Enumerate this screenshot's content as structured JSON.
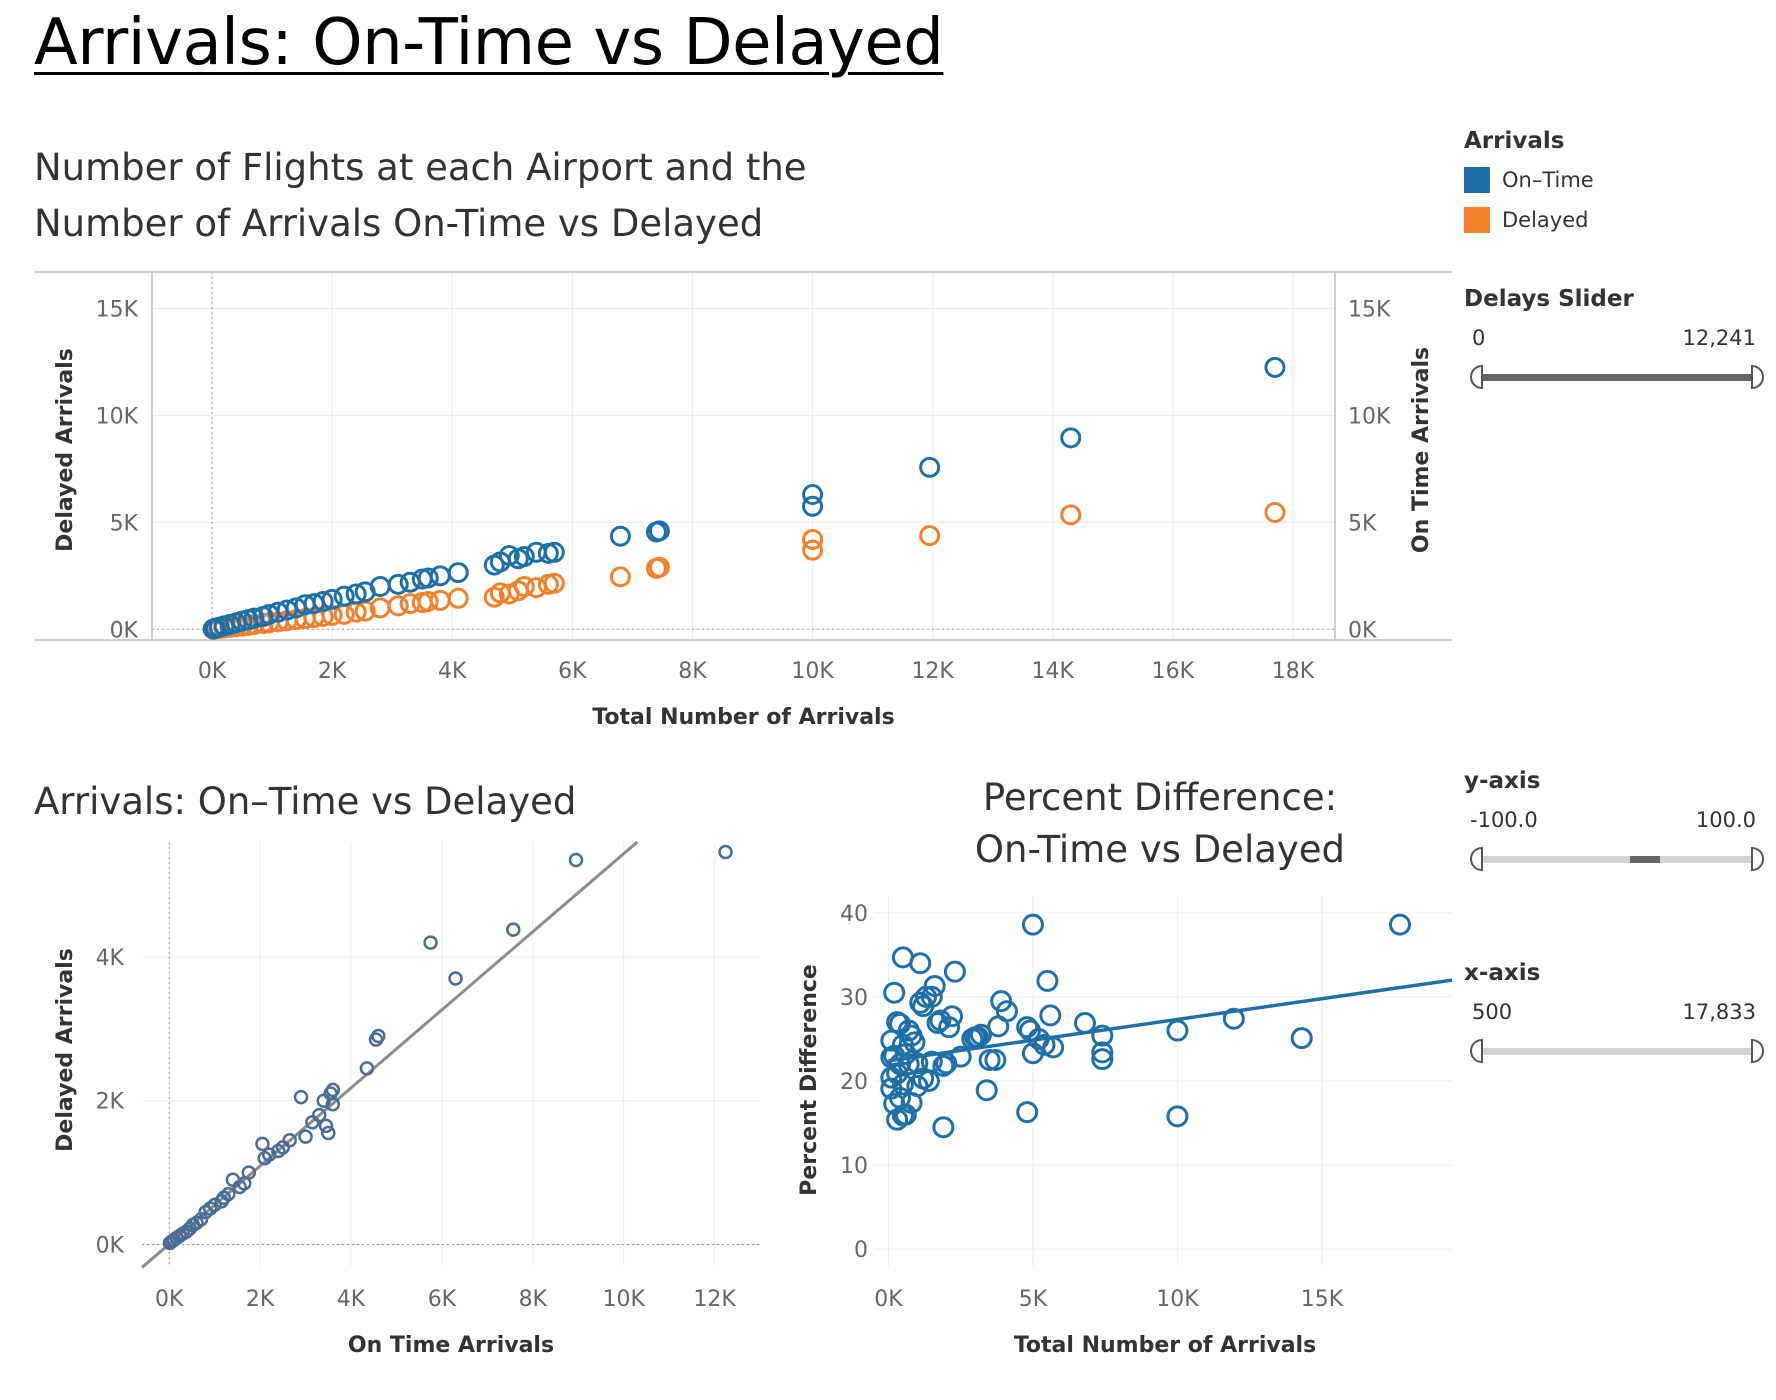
{
  "title": "Arrivals: On-Time vs Delayed",
  "colors": {
    "on_time": "#1f6fa8",
    "delayed": "#f3802b",
    "gray_point": "#4a6d95",
    "reg_line": "#8c8c8c"
  },
  "legend": {
    "title": "Arrivals",
    "items": [
      {
        "label": "On–Time",
        "color": "#1f6fa8"
      },
      {
        "label": "Delayed",
        "color": "#f3802b"
      }
    ]
  },
  "filters": {
    "delays": {
      "title": "Delays Slider",
      "min_label": "0",
      "max_label": "12,241"
    },
    "y_axis": {
      "title": "y-axis",
      "min_label": "-100.0",
      "max_label": "100.0"
    },
    "x_axis": {
      "title": "x-axis",
      "min_label": "500",
      "max_label": "17,833"
    }
  },
  "chart_data": [
    {
      "id": "top",
      "type": "scatter",
      "title": "Number of Flights at each Airport and the Number of Arrivals On-Time vs Delayed",
      "title_lines": [
        "Number of Flights at each Airport and the",
        "Number of Arrivals On-Time vs Delayed"
      ],
      "xlabel": "Total Number of Arrivals",
      "ylabel_left": "Delayed Arrivals",
      "ylabel_right": "On Time Arrivals",
      "xlim": [
        -1000,
        18700
      ],
      "ylim": [
        -500,
        16700
      ],
      "xticks": [
        0,
        2000,
        4000,
        6000,
        8000,
        10000,
        12000,
        14000,
        16000,
        18000
      ],
      "xtick_labels": [
        "0K",
        "2K",
        "4K",
        "6K",
        "8K",
        "10K",
        "12K",
        "14K",
        "16K",
        "18K"
      ],
      "yticks": [
        0,
        5000,
        10000,
        15000
      ],
      "ytick_labels": [
        "0K",
        "5K",
        "10K",
        "15K"
      ],
      "series": [
        {
          "name": "On–Time",
          "points": [
            [
              17700,
              12241
            ],
            [
              14300,
              8950
            ],
            [
              11950,
              7570
            ],
            [
              10000,
              6300
            ],
            [
              10000,
              5750
            ],
            [
              7450,
              4600
            ],
            [
              7400,
              4550
            ],
            [
              6800,
              4350
            ],
            [
              5700,
              3600
            ],
            [
              5600,
              3550
            ],
            [
              5400,
              3600
            ],
            [
              5200,
              3400
            ],
            [
              5100,
              3300
            ],
            [
              4950,
              3450
            ],
            [
              4800,
              3150
            ],
            [
              4700,
              3000
            ],
            [
              4100,
              2650
            ],
            [
              3800,
              2500
            ],
            [
              3600,
              2400
            ],
            [
              3500,
              2350
            ],
            [
              3300,
              2200
            ],
            [
              3100,
              2100
            ],
            [
              2800,
              2000
            ],
            [
              2550,
              1750
            ],
            [
              2400,
              1650
            ],
            [
              2200,
              1550
            ],
            [
              2000,
              1400
            ],
            [
              1850,
              1300
            ],
            [
              1700,
              1200
            ],
            [
              1550,
              1150
            ],
            [
              1400,
              1000
            ],
            [
              1250,
              900
            ],
            [
              1100,
              800
            ],
            [
              950,
              700
            ],
            [
              850,
              600
            ],
            [
              700,
              520
            ],
            [
              600,
              450
            ],
            [
              500,
              380
            ],
            [
              400,
              300
            ],
            [
              300,
              230
            ],
            [
              200,
              160
            ],
            [
              120,
              100
            ],
            [
              60,
              50
            ],
            [
              20,
              15
            ]
          ]
        },
        {
          "name": "Delayed",
          "points": [
            [
              17700,
              5460
            ],
            [
              14300,
              5350
            ],
            [
              11950,
              4380
            ],
            [
              10000,
              4200
            ],
            [
              10000,
              3700
            ],
            [
              7450,
              2900
            ],
            [
              7400,
              2850
            ],
            [
              6800,
              2450
            ],
            [
              5700,
              2150
            ],
            [
              5600,
              2100
            ],
            [
              5400,
              1950
            ],
            [
              5200,
              2000
            ],
            [
              5100,
              1800
            ],
            [
              4950,
              1650
            ],
            [
              4800,
              1700
            ],
            [
              4700,
              1500
            ],
            [
              4100,
              1450
            ],
            [
              3800,
              1350
            ],
            [
              3600,
              1300
            ],
            [
              3500,
              1250
            ],
            [
              3300,
              1200
            ],
            [
              3100,
              1100
            ],
            [
              2800,
              1000
            ],
            [
              2550,
              850
            ],
            [
              2400,
              800
            ],
            [
              2200,
              700
            ],
            [
              2000,
              650
            ],
            [
              1850,
              600
            ],
            [
              1700,
              550
            ],
            [
              1550,
              500
            ],
            [
              1400,
              450
            ],
            [
              1250,
              400
            ],
            [
              1100,
              350
            ],
            [
              950,
              300
            ],
            [
              850,
              270
            ],
            [
              700,
              220
            ],
            [
              600,
              180
            ],
            [
              500,
              150
            ],
            [
              400,
              120
            ],
            [
              300,
              90
            ],
            [
              200,
              60
            ],
            [
              120,
              40
            ],
            [
              60,
              20
            ],
            [
              20,
              8
            ]
          ]
        }
      ]
    },
    {
      "id": "bl",
      "type": "scatter",
      "title": "Arrivals: On–Time vs Delayed",
      "xlabel": "On Time Arrivals",
      "ylabel": "Delayed Arrivals",
      "xlim": [
        -600,
        13000
      ],
      "ylim": [
        -300,
        5600
      ],
      "xticks": [
        0,
        2000,
        4000,
        6000,
        8000,
        10000,
        12000
      ],
      "xtick_labels": [
        "0K",
        "2K",
        "4K",
        "6K",
        "8K",
        "10K",
        "12K"
      ],
      "yticks": [
        0,
        2000,
        4000
      ],
      "ytick_labels": [
        "0K",
        "2K",
        "4K"
      ],
      "trend_line": [
        [
          -600,
          -320
        ],
        [
          10300,
          5600
        ]
      ],
      "series": [
        {
          "name": "",
          "points": [
            [
              12241,
              5460
            ],
            [
              8950,
              5350
            ],
            [
              7570,
              4380
            ],
            [
              5750,
              4200
            ],
            [
              6300,
              3700
            ],
            [
              4600,
              2900
            ],
            [
              4550,
              2850
            ],
            [
              4350,
              2450
            ],
            [
              3600,
              2150
            ],
            [
              3550,
              2100
            ],
            [
              3600,
              1950
            ],
            [
              3400,
              2000
            ],
            [
              2900,
              2050
            ],
            [
              3450,
              1650
            ],
            [
              3500,
              1550
            ],
            [
              3300,
              1800
            ],
            [
              3150,
              1700
            ],
            [
              3000,
              1500
            ],
            [
              2650,
              1450
            ],
            [
              2500,
              1350
            ],
            [
              2400,
              1300
            ],
            [
              2200,
              1250
            ],
            [
              2100,
              1200
            ],
            [
              2050,
              1400
            ],
            [
              1750,
              1000
            ],
            [
              1650,
              850
            ],
            [
              1550,
              800
            ],
            [
              1400,
              900
            ],
            [
              1300,
              700
            ],
            [
              1200,
              650
            ],
            [
              1150,
              600
            ],
            [
              1000,
              550
            ],
            [
              900,
              500
            ],
            [
              800,
              450
            ],
            [
              700,
              350
            ],
            [
              600,
              300
            ],
            [
              520,
              270
            ],
            [
              450,
              220
            ],
            [
              380,
              180
            ],
            [
              300,
              150
            ],
            [
              230,
              120
            ],
            [
              160,
              90
            ],
            [
              100,
              60
            ],
            [
              50,
              40
            ],
            [
              15,
              20
            ]
          ]
        }
      ]
    },
    {
      "id": "br",
      "type": "scatter",
      "title": "Percent Difference: On-Time vs Delayed",
      "title_lines": [
        "Percent Difference:",
        "On-Time vs  Delayed"
      ],
      "xlabel": "Total Number of Arrivals",
      "ylabel": "Percent Difference",
      "xlim": [
        -500,
        19500
      ],
      "ylim": [
        -2,
        42
      ],
      "xticks": [
        0,
        5000,
        10000,
        15000
      ],
      "xtick_labels": [
        "0K",
        "5K",
        "10K",
        "15K"
      ],
      "yticks": [
        0,
        10,
        20,
        30,
        40
      ],
      "ytick_labels": [
        "0",
        "10",
        "20",
        "30",
        "40"
      ],
      "trend_line": [
        [
          0,
          22.4
        ],
        [
          19500,
          32
        ]
      ],
      "series": [
        {
          "name": "",
          "points": [
            [
              17700,
              38.6
            ],
            [
              14300,
              25.1
            ],
            [
              11950,
              27.4
            ],
            [
              10000,
              26.0
            ],
            [
              10000,
              15.8
            ],
            [
              7400,
              25.4
            ],
            [
              7400,
              23.4
            ],
            [
              7400,
              22.6
            ],
            [
              6800,
              26.9
            ],
            [
              5700,
              24.0
            ],
            [
              5600,
              27.8
            ],
            [
              5500,
              31.9
            ],
            [
              5400,
              24.3
            ],
            [
              5200,
              25.0
            ],
            [
              5000,
              38.6
            ],
            [
              5000,
              23.3
            ],
            [
              4900,
              26.0
            ],
            [
              4800,
              26.4
            ],
            [
              4800,
              16.3
            ],
            [
              4100,
              28.3
            ],
            [
              3900,
              29.5
            ],
            [
              3800,
              26.5
            ],
            [
              3700,
              22.5
            ],
            [
              3500,
              22.5
            ],
            [
              3400,
              18.9
            ],
            [
              3200,
              25.5
            ],
            [
              3100,
              25.2
            ],
            [
              3000,
              25.2
            ],
            [
              2900,
              25.0
            ],
            [
              2500,
              22.9
            ],
            [
              2300,
              33.0
            ],
            [
              2200,
              27.7
            ],
            [
              2100,
              26.4
            ],
            [
              2000,
              22.1
            ],
            [
              1900,
              14.5
            ],
            [
              1900,
              21.8
            ],
            [
              1800,
              27.2
            ],
            [
              1700,
              26.9
            ],
            [
              1600,
              31.3
            ],
            [
              1500,
              30.0
            ],
            [
              1500,
              22.3
            ],
            [
              1400,
              20.0
            ],
            [
              1300,
              30.0
            ],
            [
              1200,
              28.9
            ],
            [
              1200,
              20.3
            ],
            [
              1100,
              34.0
            ],
            [
              1100,
              29.3
            ],
            [
              1000,
              19.4
            ],
            [
              1000,
              22.1
            ],
            [
              900,
              24.6
            ],
            [
              800,
              25.4
            ],
            [
              800,
              17.4
            ],
            [
              700,
              22.0
            ],
            [
              700,
              26.0
            ],
            [
              600,
              23.2
            ],
            [
              600,
              16.0
            ],
            [
              500,
              34.7
            ],
            [
              500,
              24.3
            ],
            [
              500,
              19.6
            ],
            [
              500,
              15.9
            ],
            [
              400,
              26.8
            ],
            [
              400,
              22.0
            ],
            [
              400,
              18.0
            ],
            [
              300,
              27.0
            ],
            [
              300,
              20.9
            ],
            [
              300,
              15.4
            ],
            [
              200,
              30.5
            ],
            [
              200,
              23.0
            ],
            [
              200,
              17.3
            ],
            [
              100,
              20.4
            ],
            [
              100,
              22.8
            ],
            [
              100,
              24.8
            ],
            [
              100,
              19.1
            ]
          ]
        }
      ]
    }
  ]
}
